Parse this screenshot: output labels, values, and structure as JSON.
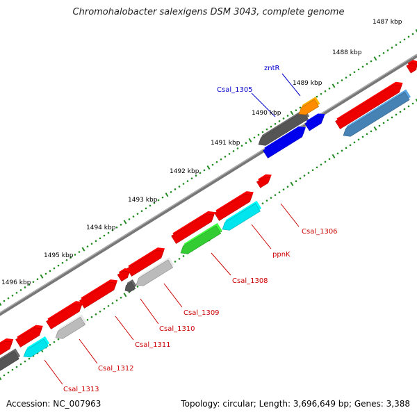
{
  "title": "Chromohalobacter salexigens DSM 3043, complete genome",
  "footer": {
    "accession": "Accession: NC_007963",
    "summary": "Topology: circular; Length: 3,696,649 bp; Genes: 3,388"
  },
  "tick_labels": [
    "1487 kbp",
    "1488 kbp",
    "1489 kbp",
    "1490 kbp",
    "1491 kbp",
    "1492 kbp",
    "1493 kbp",
    "1494 kbp",
    "1495 kbp",
    "1496 kbp"
  ],
  "gene_labels": {
    "zntR": "zntR",
    "Csal_1305": "Csal_1305",
    "Csal_1306": "Csal_1306",
    "ppnK": "ppnK",
    "Csal_1308": "Csal_1308",
    "Csal_1309": "Csal_1309",
    "Csal_1310": "Csal_1310",
    "Csal_1311": "Csal_1311",
    "Csal_1312": "Csal_1312",
    "Csal_1313": "Csal_1313"
  },
  "colors": {
    "red": "#ee0000",
    "blue": "#0000ee",
    "orange": "#ff8c00",
    "steelblue": "#4682b4",
    "cyan": "#00e5ee",
    "green": "#33cc33",
    "darkgray": "#555555",
    "lightgray": "#bbbbbb",
    "backbone": "#808080",
    "tick": "#228b22",
    "label_red": "#cc0000",
    "label_blue": "#0000cc"
  }
}
